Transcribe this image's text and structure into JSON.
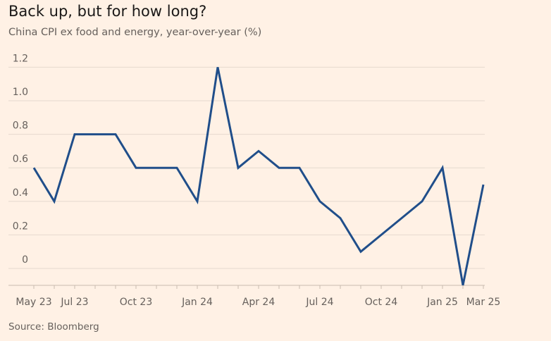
{
  "title": "Back up, but for how long?",
  "subtitle": "China CPI ex food and energy, year-over-year (%)",
  "source": "Source: Bloomberg",
  "chart_data": {
    "type": "line",
    "title": "Back up, but for how long?",
    "subtitle": "China CPI ex food and energy, year-over-year (%)",
    "xlabel": "",
    "ylabel": "",
    "x": [
      "May 23",
      "Jun 23",
      "Jul 23",
      "Aug 23",
      "Sep 23",
      "Oct 23",
      "Nov 23",
      "Dec 23",
      "Jan 24",
      "Feb 24",
      "Mar 24",
      "Apr 24",
      "May 24",
      "Jun 24",
      "Jul 24",
      "Aug 24",
      "Sep 24",
      "Oct 24",
      "Nov 24",
      "Dec 24",
      "Jan 25",
      "Feb 25",
      "Mar 25"
    ],
    "series": [
      {
        "name": "",
        "color": "#204e8a",
        "values": [
          0.6,
          0.4,
          0.8,
          0.8,
          0.8,
          0.6,
          0.6,
          0.6,
          0.4,
          1.2,
          0.6,
          0.7,
          0.6,
          0.6,
          0.4,
          0.3,
          0.1,
          0.2,
          0.3,
          0.4,
          0.6,
          -0.1,
          0.5
        ]
      }
    ],
    "x_tick_labels": [
      "May 23",
      "Jul 23",
      "Oct 23",
      "Jan 24",
      "Apr 24",
      "Jul 24",
      "Oct 24",
      "Jan 25",
      "Mar 25"
    ],
    "x_tick_index": [
      0,
      2,
      5,
      8,
      11,
      14,
      17,
      20,
      22
    ],
    "y_ticks": [
      0,
      0.2,
      0.4,
      0.6,
      0.8,
      1.0,
      1.2
    ],
    "y_tick_labels": [
      "0",
      "0.2",
      "0.4",
      "0.6",
      "0.8",
      "1.0",
      "1.2"
    ],
    "ylim": [
      -0.1,
      1.2
    ],
    "grid": true,
    "legend": "none"
  }
}
